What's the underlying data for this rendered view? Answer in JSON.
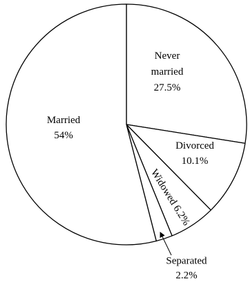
{
  "chart_data": {
    "type": "pie",
    "slices": [
      {
        "name": "Never married",
        "label_lines": [
          "Never",
          "married",
          "27.5%"
        ],
        "value": 27.5
      },
      {
        "name": "Divorced",
        "label_lines": [
          "Divorced",
          "10.1%"
        ],
        "value": 10.1
      },
      {
        "name": "Widowed",
        "label_lines": [
          "Widowed 6.2%"
        ],
        "value": 6.2
      },
      {
        "name": "Separated",
        "label_lines": [
          "Separated",
          "2.2%"
        ],
        "value": 2.2
      },
      {
        "name": "Married",
        "label_lines": [
          "Married",
          "54%"
        ],
        "value": 54
      }
    ],
    "start": "12 o'clock",
    "direction": "clockwise",
    "legend": "none",
    "colors": {
      "fill": "#ffffff",
      "stroke": "#000000"
    }
  }
}
